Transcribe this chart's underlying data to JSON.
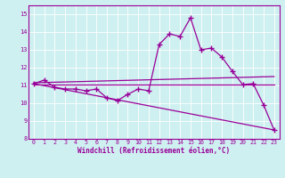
{
  "xlabel": "Windchill (Refroidissement éolien,°C)",
  "bg_color": "#cff0f0",
  "line_color": "#990099",
  "xlim": [
    -0.5,
    23.5
  ],
  "ylim": [
    8,
    15.5
  ],
  "yticks": [
    8,
    9,
    10,
    11,
    12,
    13,
    14,
    15
  ],
  "xticks": [
    0,
    1,
    2,
    3,
    4,
    5,
    6,
    7,
    8,
    9,
    10,
    11,
    12,
    13,
    14,
    15,
    16,
    17,
    18,
    19,
    20,
    21,
    22,
    23
  ],
  "series1_x": [
    0,
    1,
    2,
    3,
    4,
    5,
    6,
    7,
    8,
    9,
    10,
    11,
    12,
    13,
    14,
    15,
    16,
    17,
    18,
    19,
    20,
    21,
    22,
    23
  ],
  "series1_y": [
    11.1,
    11.3,
    10.9,
    10.8,
    10.8,
    10.7,
    10.8,
    10.3,
    10.15,
    10.5,
    10.8,
    10.7,
    13.3,
    13.9,
    13.75,
    14.8,
    13.0,
    13.1,
    12.6,
    11.8,
    11.05,
    11.1,
    9.9,
    8.5
  ],
  "trend1_x": [
    0,
    23
  ],
  "trend1_y": [
    11.15,
    11.5
  ],
  "trend2_x": [
    0,
    23
  ],
  "trend2_y": [
    11.05,
    11.05
  ],
  "trend3_x": [
    0,
    23
  ],
  "trend3_y": [
    11.1,
    8.5
  ]
}
